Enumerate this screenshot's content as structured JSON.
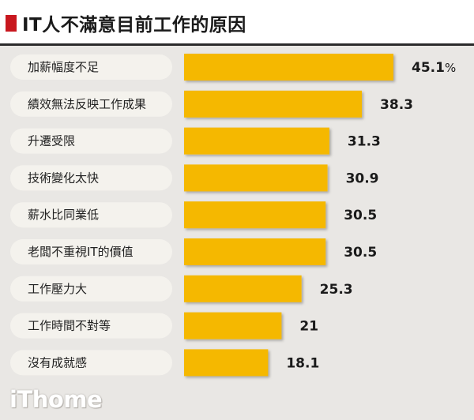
{
  "title": "IT人不滿意目前工作的原因",
  "brand": "iThome",
  "chart_data": {
    "type": "bar",
    "orientation": "horizontal",
    "title": "IT人不滿意目前工作的原因",
    "unit": "%",
    "categories": [
      "加薪幅度不足",
      "績效無法反映工作成果",
      "升遷受限",
      "技術變化太快",
      "薪水比同業低",
      "老闆不重視IT的價值",
      "工作壓力大",
      "工作時間不對等",
      "沒有成就感"
    ],
    "values": [
      45.1,
      38.3,
      31.3,
      30.9,
      30.5,
      30.5,
      25.3,
      21,
      18.1
    ],
    "value_labels": [
      "45.1",
      "38.3",
      "31.3",
      "30.9",
      "30.5",
      "30.5",
      "25.3",
      "21",
      "18.1"
    ],
    "xlim": [
      0,
      45.1
    ],
    "bar_color": "#f5b800",
    "grid": false,
    "legend": "none"
  }
}
